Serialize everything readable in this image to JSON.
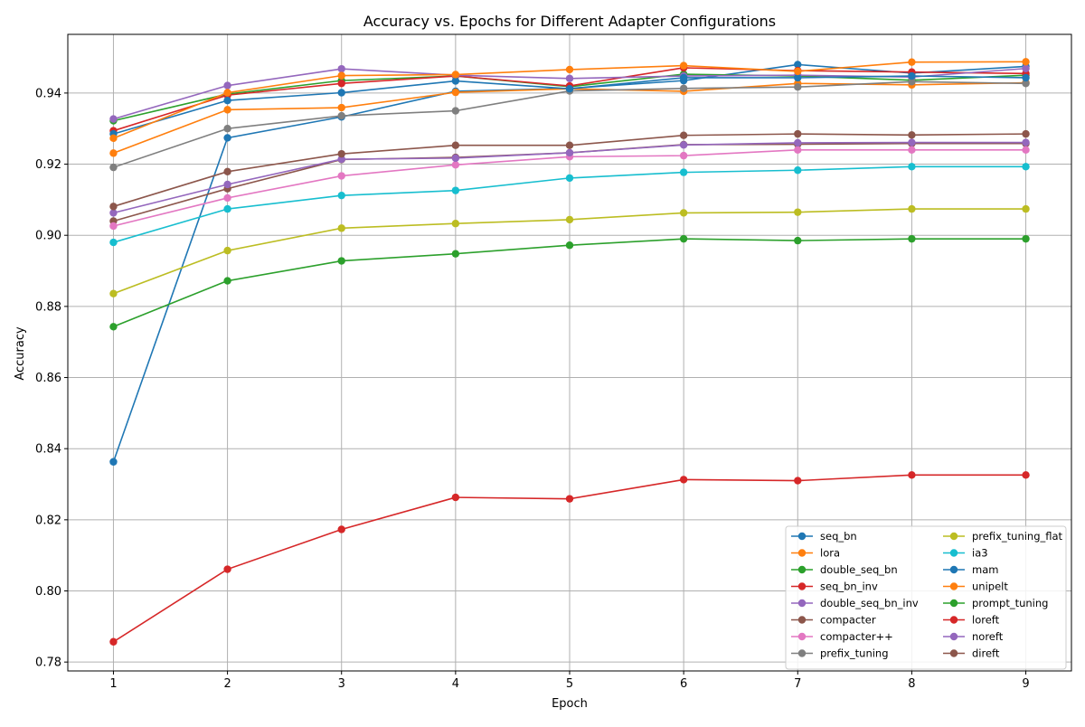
{
  "chart_data": {
    "type": "line",
    "title": "Accuracy vs. Epochs for Different Adapter Configurations",
    "xlabel": "Epoch",
    "ylabel": "Accuracy",
    "x": [
      1,
      2,
      3,
      4,
      5,
      6,
      7,
      8,
      9
    ],
    "xlim": [
      0.6,
      9.4
    ],
    "ylim": [
      0.7775,
      0.9565
    ],
    "xticks": [
      "1",
      "2",
      "3",
      "4",
      "5",
      "6",
      "7",
      "8",
      "9"
    ],
    "yticks": [
      "0.78",
      "0.80",
      "0.82",
      "0.84",
      "0.86",
      "0.88",
      "0.90",
      "0.92",
      "0.94"
    ],
    "grid": true,
    "legend_position": "lower-right",
    "legend_columns": 2,
    "series": [
      {
        "name": "seq_bn",
        "color": "#1f77b4",
        "values": [
          0.8363,
          0.9274,
          0.9333,
          0.9405,
          0.9413,
          0.9435,
          0.948,
          0.9456,
          0.9475
        ]
      },
      {
        "name": "lora",
        "color": "#ff7f0e",
        "values": [
          0.9231,
          0.9353,
          0.9359,
          0.9402,
          0.9412,
          0.9405,
          0.9427,
          0.9423,
          0.9429
        ]
      },
      {
        "name": "double_seq_bn",
        "color": "#2ca02c",
        "values": [
          0.9322,
          0.9397,
          0.9435,
          0.9448,
          0.9418,
          0.9453,
          0.9448,
          0.9436,
          0.945
        ]
      },
      {
        "name": "seq_bn_inv",
        "color": "#d62728",
        "values": [
          0.9294,
          0.9394,
          0.9427,
          0.9448,
          0.942,
          0.9471,
          0.9463,
          0.9459,
          0.9455
        ]
      },
      {
        "name": "double_seq_bn_inv",
        "color": "#9467bd",
        "values": [
          0.9327,
          0.9421,
          0.9468,
          0.945,
          0.9441,
          0.9448,
          0.945,
          0.9445,
          0.9469
        ]
      },
      {
        "name": "compacter",
        "color": "#8c564b",
        "values": [
          0.904,
          0.9131,
          0.9213,
          0.9219,
          0.9232,
          0.9255,
          0.9256,
          0.9258,
          0.9258
        ]
      },
      {
        "name": "compacter++",
        "color": "#e377c2",
        "values": [
          0.9026,
          0.9105,
          0.9167,
          0.9198,
          0.9221,
          0.9224,
          0.924,
          0.924,
          0.924
        ]
      },
      {
        "name": "prefix_tuning",
        "color": "#7f7f7f",
        "values": [
          0.9191,
          0.93,
          0.9336,
          0.935,
          0.9406,
          0.9413,
          0.9417,
          0.9432,
          0.9427
        ]
      },
      {
        "name": "prefix_tuning_flat",
        "color": "#bcbd22",
        "values": [
          0.8836,
          0.8957,
          0.902,
          0.9033,
          0.9044,
          0.9063,
          0.9065,
          0.9074,
          0.9074
        ]
      },
      {
        "name": "ia3",
        "color": "#17becf",
        "values": [
          0.898,
          0.9074,
          0.9112,
          0.9126,
          0.9161,
          0.9177,
          0.9183,
          0.9193,
          0.9193
        ]
      },
      {
        "name": "mam",
        "color": "#1f77b4",
        "values": [
          0.9285,
          0.9379,
          0.9401,
          0.9434,
          0.9412,
          0.9443,
          0.9443,
          0.9448,
          0.9443
        ]
      },
      {
        "name": "unipelt",
        "color": "#ff7f0e",
        "values": [
          0.9273,
          0.9401,
          0.9449,
          0.9452,
          0.9466,
          0.9477,
          0.9461,
          0.9487,
          0.9488
        ]
      },
      {
        "name": "prompt_tuning",
        "color": "#2ca02c",
        "values": [
          0.8743,
          0.8872,
          0.8928,
          0.8948,
          0.8972,
          0.899,
          0.8985,
          0.899,
          0.899
        ]
      },
      {
        "name": "loreft",
        "color": "#d62728",
        "values": [
          0.7857,
          0.8061,
          0.8173,
          0.8263,
          0.8259,
          0.8313,
          0.831,
          0.8326,
          0.8326
        ]
      },
      {
        "name": "noreft",
        "color": "#9467bd",
        "values": [
          0.9063,
          0.9143,
          0.9214,
          0.9217,
          0.9232,
          0.9254,
          0.926,
          0.9261,
          0.9261
        ]
      },
      {
        "name": "direft",
        "color": "#8c564b",
        "values": [
          0.9081,
          0.9179,
          0.9229,
          0.9253,
          0.9253,
          0.9281,
          0.9285,
          0.9282,
          0.9285
        ]
      }
    ]
  }
}
